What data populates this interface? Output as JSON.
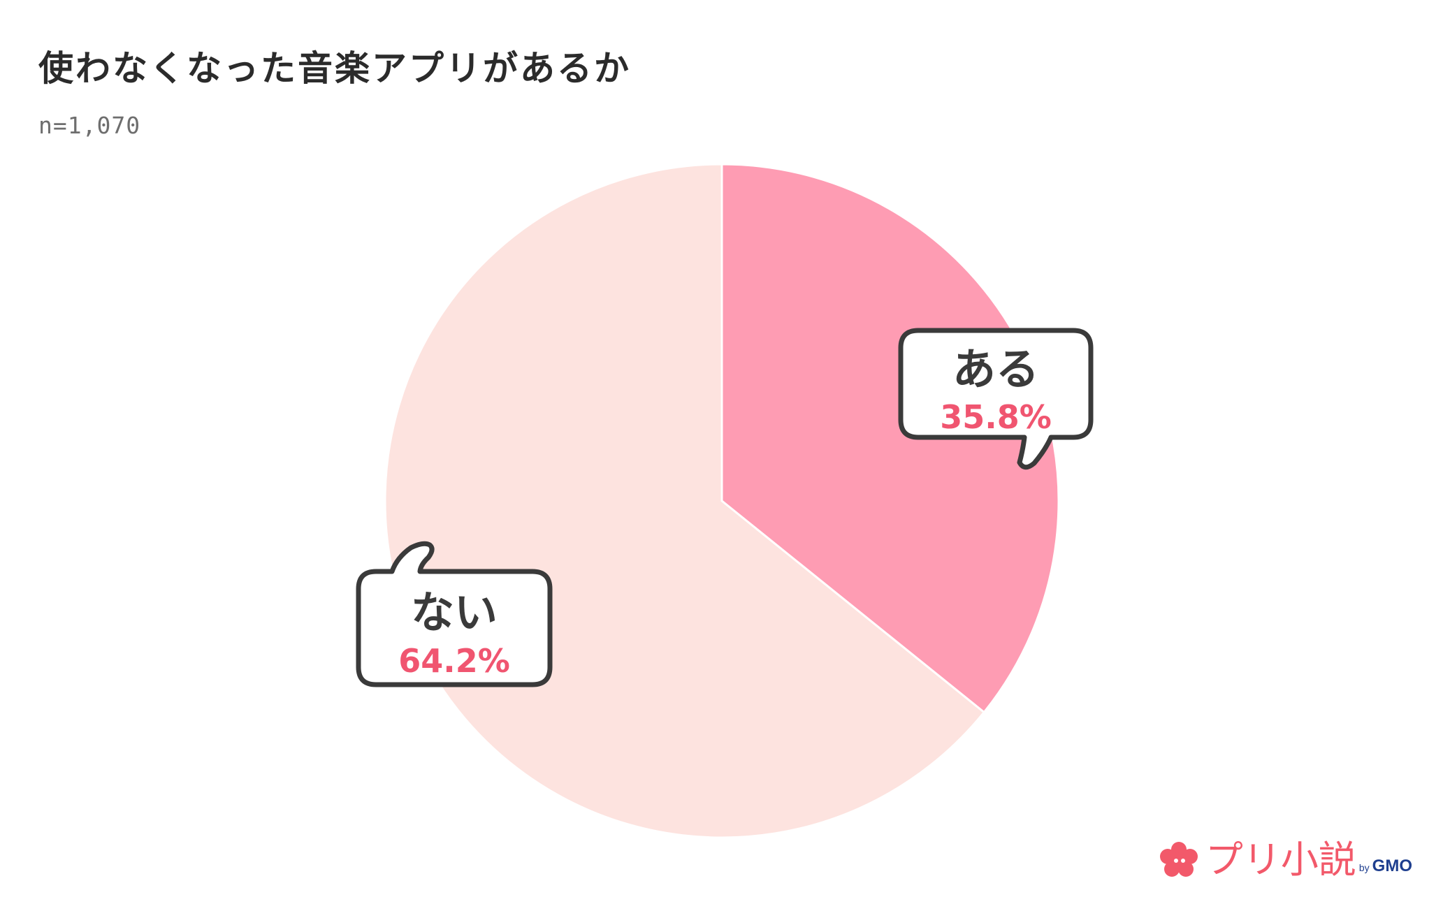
{
  "chart_data": {
    "type": "pie",
    "title": "使わなくなった音楽アプリがあるか",
    "subtitle": "n=1,070",
    "slices": [
      {
        "label": "ある",
        "value": 35.8,
        "value_label": "35.8%",
        "color": "#fe9cb3"
      },
      {
        "label": "ない",
        "value": 64.2,
        "value_label": "64.2%",
        "color": "#fde3df"
      }
    ],
    "start": "12 o'clock",
    "direction": "clockwise"
  },
  "colors": {
    "percent_text": "#f05570",
    "bubble_border": "#3a3a3a",
    "bubble_fill": "#ffffff",
    "title_text": "#2b2b2b",
    "subtitle_text": "#6e6e6e"
  },
  "brand": {
    "icon": "flower-logo-icon",
    "name": "プリ小説",
    "by": "by",
    "company": "GMO"
  }
}
